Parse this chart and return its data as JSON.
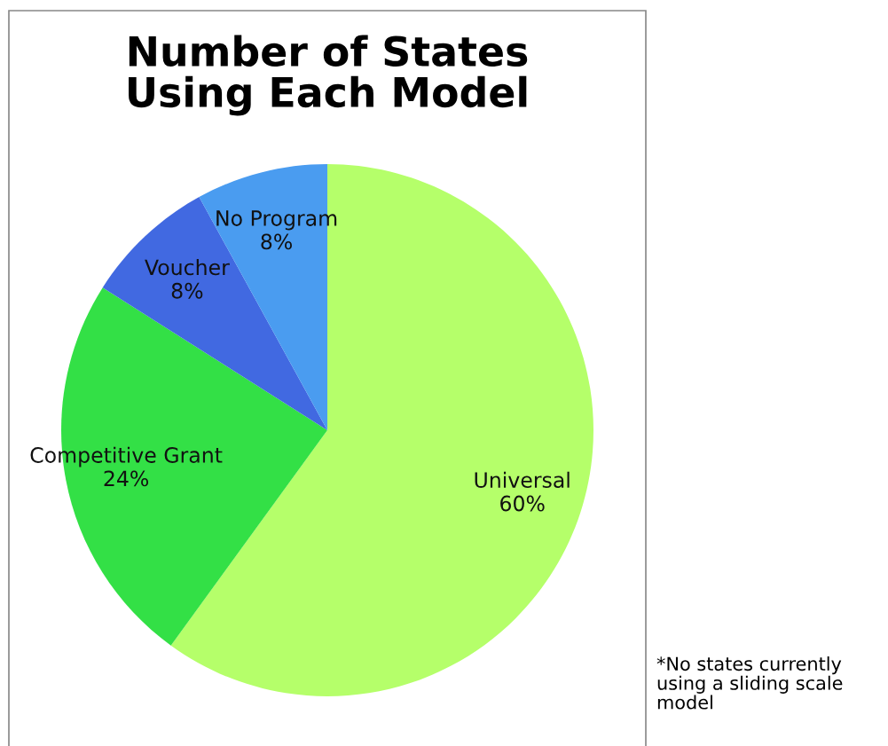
{
  "chart_data": {
    "type": "pie",
    "title": "Number of States\nUsing Each Model",
    "categories": [
      "Universal",
      "Competitive Grant",
      "Voucher",
      "No Program"
    ],
    "values": [
      60,
      24,
      8,
      8
    ],
    "value_labels": [
      "60%",
      "24%",
      "8%",
      "8%"
    ],
    "colors": [
      "#b5ff6a",
      "#33e046",
      "#4169e1",
      "#4a9cf0"
    ],
    "legend": false,
    "annotations": [
      "*No states currently\nusing a sliding scale\nmodel"
    ]
  }
}
